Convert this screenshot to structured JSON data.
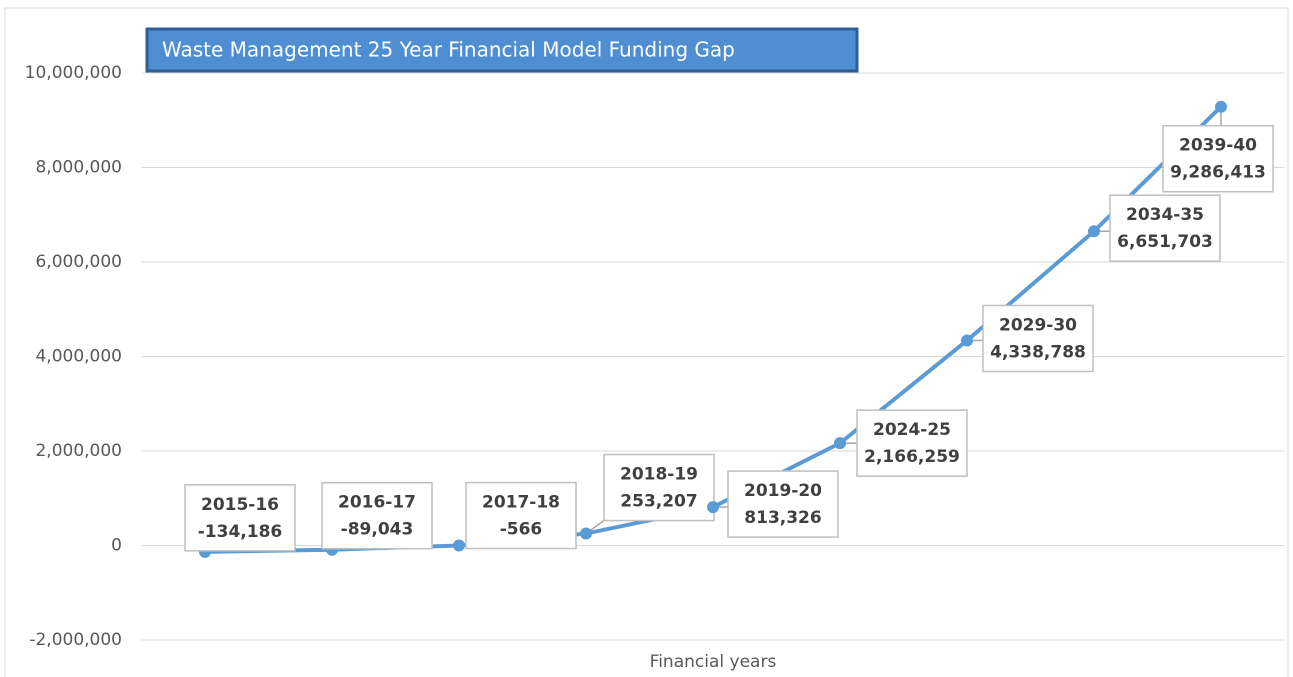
{
  "chart_data": {
    "type": "line",
    "title": "Waste Management 25 Year Financial Model Funding Gap",
    "x_label": "Financial years",
    "categories": [
      "2015-16",
      "2016-17",
      "2017-18",
      "2018-19",
      "2019-20",
      "2024-25",
      "2029-30",
      "2034-35",
      "2039-40"
    ],
    "values": [
      -134186,
      -89043,
      -566,
      253207,
      813326,
      2166259,
      4338788,
      6651703,
      9286413
    ],
    "value_labels": [
      "-134,186",
      "-89,043",
      "-566",
      "253,207",
      "813,326",
      "2,166,259",
      "4,338,788",
      "6,651,703",
      "9,286,413"
    ],
    "color": "#5b9bd5",
    "ylim": [
      -2000000,
      10000000
    ],
    "yticks": [
      {
        "value": -2000000,
        "label": "-2,000,000"
      },
      0,
      {
        "value": 2000000,
        "label": "2,000,000"
      },
      {
        "value": 4000000,
        "label": "4,000,000"
      },
      {
        "value": 6000000,
        "label": "6,000,000"
      },
      {
        "value": 8000000,
        "label": "8,000,000"
      },
      {
        "value": 10000000,
        "label": "10,000,000"
      }
    ],
    "grid": true
  }
}
